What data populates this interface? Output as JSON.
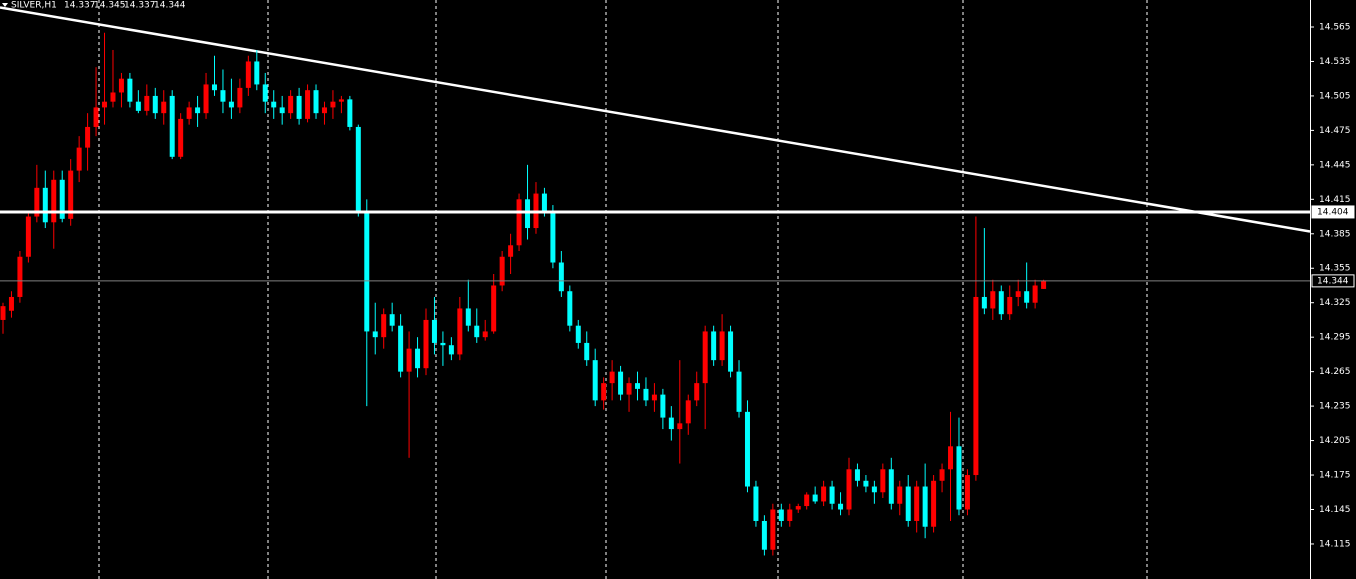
{
  "chart_data": {
    "type": "candlestick",
    "title": "SILVER,H1",
    "header_ohlc": [
      14.337,
      14.345,
      14.337,
      14.344
    ],
    "up_color": "#ff0000",
    "down_color": "#00ffff",
    "ylim": [
      14.0845,
      14.5885
    ],
    "yticks": [
      14.115,
      14.145,
      14.175,
      14.205,
      14.235,
      14.265,
      14.295,
      14.325,
      14.355,
      14.385,
      14.415,
      14.445,
      14.475,
      14.505,
      14.535,
      14.565
    ],
    "hlines": [
      {
        "value": 14.404,
        "color": "#ffffff"
      },
      {
        "value": 14.344,
        "color": "#808080"
      }
    ],
    "trendline": {
      "values": [
        14.582,
        14.387
      ],
      "color": "#ffffff"
    },
    "ohlc": [
      [
        14.31,
        14.325,
        14.298,
        14.322
      ],
      [
        14.318,
        14.335,
        14.312,
        14.33
      ],
      [
        14.33,
        14.37,
        14.325,
        14.365
      ],
      [
        14.365,
        14.405,
        14.36,
        14.4
      ],
      [
        14.4,
        14.445,
        14.395,
        14.425
      ],
      [
        14.425,
        14.44,
        14.39,
        14.395
      ],
      [
        14.395,
        14.44,
        14.372,
        14.432
      ],
      [
        14.432,
        14.44,
        14.395,
        14.398
      ],
      [
        14.398,
        14.45,
        14.392,
        14.44
      ],
      [
        14.44,
        14.47,
        14.43,
        14.46
      ],
      [
        14.46,
        14.49,
        14.44,
        14.478
      ],
      [
        14.478,
        14.53,
        14.47,
        14.495
      ],
      [
        14.495,
        14.56,
        14.48,
        14.5
      ],
      [
        14.5,
        14.545,
        14.495,
        14.508
      ],
      [
        14.508,
        14.525,
        14.495,
        14.52
      ],
      [
        14.52,
        14.525,
        14.495,
        14.5
      ],
      [
        14.5,
        14.51,
        14.49,
        14.492
      ],
      [
        14.492,
        14.515,
        14.488,
        14.505
      ],
      [
        14.505,
        14.512,
        14.485,
        14.49
      ],
      [
        14.49,
        14.51,
        14.48,
        14.5
      ],
      [
        14.505,
        14.51,
        14.45,
        14.452
      ],
      [
        14.452,
        14.49,
        14.45,
        14.485
      ],
      [
        14.485,
        14.5,
        14.48,
        14.495
      ],
      [
        14.495,
        14.505,
        14.478,
        14.49
      ],
      [
        14.49,
        14.525,
        14.485,
        14.515
      ],
      [
        14.515,
        14.54,
        14.505,
        14.51
      ],
      [
        14.51,
        14.528,
        14.49,
        14.5
      ],
      [
        14.5,
        14.52,
        14.485,
        14.495
      ],
      [
        14.495,
        14.52,
        14.49,
        14.512
      ],
      [
        14.512,
        14.54,
        14.505,
        14.535
      ],
      [
        14.535,
        14.545,
        14.51,
        14.515
      ],
      [
        14.515,
        14.525,
        14.49,
        14.5
      ],
      [
        14.5,
        14.51,
        14.485,
        14.495
      ],
      [
        14.495,
        14.505,
        14.48,
        14.49
      ],
      [
        14.49,
        14.51,
        14.485,
        14.505
      ],
      [
        14.505,
        14.512,
        14.48,
        14.485
      ],
      [
        14.485,
        14.515,
        14.482,
        14.51
      ],
      [
        14.51,
        14.515,
        14.485,
        14.49
      ],
      [
        14.49,
        14.5,
        14.48,
        14.495
      ],
      [
        14.495,
        14.51,
        14.485,
        14.5
      ],
      [
        14.5,
        14.505,
        14.49,
        14.502
      ],
      [
        14.502,
        14.505,
        14.475,
        14.478
      ],
      [
        14.478,
        14.48,
        14.4,
        14.405
      ],
      [
        14.405,
        14.415,
        14.235,
        14.3
      ],
      [
        14.3,
        14.325,
        14.28,
        14.295
      ],
      [
        14.295,
        14.32,
        14.285,
        14.315
      ],
      [
        14.315,
        14.325,
        14.3,
        14.305
      ],
      [
        14.305,
        14.315,
        14.26,
        14.265
      ],
      [
        14.265,
        14.3,
        14.19,
        14.285
      ],
      [
        14.285,
        14.295,
        14.26,
        14.268
      ],
      [
        14.268,
        14.32,
        14.262,
        14.31
      ],
      [
        14.31,
        14.33,
        14.28,
        14.29
      ],
      [
        14.29,
        14.3,
        14.27,
        14.288
      ],
      [
        14.288,
        14.295,
        14.275,
        14.28
      ],
      [
        14.28,
        14.33,
        14.275,
        14.32
      ],
      [
        14.32,
        14.345,
        14.3,
        14.305
      ],
      [
        14.305,
        14.32,
        14.29,
        14.295
      ],
      [
        14.295,
        14.31,
        14.292,
        14.3
      ],
      [
        14.3,
        14.35,
        14.298,
        14.34
      ],
      [
        14.34,
        14.37,
        14.335,
        14.365
      ],
      [
        14.365,
        14.385,
        14.35,
        14.375
      ],
      [
        14.375,
        14.42,
        14.37,
        14.415
      ],
      [
        14.415,
        14.445,
        14.38,
        14.39
      ],
      [
        14.39,
        14.43,
        14.385,
        14.42
      ],
      [
        14.42,
        14.425,
        14.4,
        14.405
      ],
      [
        14.405,
        14.41,
        14.355,
        14.36
      ],
      [
        14.36,
        14.37,
        14.33,
        14.335
      ],
      [
        14.335,
        14.34,
        14.3,
        14.305
      ],
      [
        14.305,
        14.31,
        14.285,
        14.29
      ],
      [
        14.29,
        14.3,
        14.27,
        14.275
      ],
      [
        14.275,
        14.285,
        14.235,
        14.24
      ],
      [
        14.24,
        14.26,
        14.232,
        14.255
      ],
      [
        14.255,
        14.275,
        14.24,
        14.265
      ],
      [
        14.265,
        14.27,
        14.24,
        14.245
      ],
      [
        14.245,
        14.26,
        14.23,
        14.255
      ],
      [
        14.255,
        14.265,
        14.24,
        14.25
      ],
      [
        14.25,
        14.26,
        14.235,
        14.24
      ],
      [
        14.24,
        14.255,
        14.23,
        14.245
      ],
      [
        14.245,
        14.25,
        14.215,
        14.225
      ],
      [
        14.225,
        14.235,
        14.205,
        14.215
      ],
      [
        14.215,
        14.275,
        14.185,
        14.22
      ],
      [
        14.22,
        14.245,
        14.21,
        14.24
      ],
      [
        14.24,
        14.265,
        14.235,
        14.255
      ],
      [
        14.255,
        14.305,
        14.215,
        14.3
      ],
      [
        14.3,
        14.305,
        14.27,
        14.275
      ],
      [
        14.275,
        14.315,
        14.27,
        14.3
      ],
      [
        14.3,
        14.305,
        14.26,
        14.265
      ],
      [
        14.265,
        14.275,
        14.225,
        14.23
      ],
      [
        14.23,
        14.24,
        14.16,
        14.165
      ],
      [
        14.165,
        14.17,
        14.13,
        14.135
      ],
      [
        14.135,
        14.14,
        14.105,
        14.11
      ],
      [
        14.11,
        14.15,
        14.105,
        14.145
      ],
      [
        14.145,
        14.15,
        14.13,
        14.135
      ],
      [
        14.135,
        14.15,
        14.13,
        14.145
      ],
      [
        14.145,
        14.15,
        14.142,
        14.148
      ],
      [
        14.148,
        14.16,
        14.145,
        14.158
      ],
      [
        14.158,
        14.165,
        14.15,
        14.152
      ],
      [
        14.152,
        14.17,
        14.148,
        14.165
      ],
      [
        14.165,
        14.17,
        14.145,
        14.15
      ],
      [
        14.15,
        14.16,
        14.14,
        14.145
      ],
      [
        14.145,
        14.19,
        14.14,
        14.18
      ],
      [
        14.18,
        14.185,
        14.165,
        14.17
      ],
      [
        14.17,
        14.175,
        14.16,
        14.165
      ],
      [
        14.165,
        14.17,
        14.15,
        14.16
      ],
      [
        14.16,
        14.185,
        14.155,
        14.18
      ],
      [
        14.18,
        14.19,
        14.145,
        14.15
      ],
      [
        14.15,
        14.17,
        14.14,
        14.165
      ],
      [
        14.165,
        14.175,
        14.13,
        14.135
      ],
      [
        14.135,
        14.17,
        14.125,
        14.165
      ],
      [
        14.165,
        14.185,
        14.12,
        14.13
      ],
      [
        14.13,
        14.175,
        14.125,
        14.17
      ],
      [
        14.17,
        14.185,
        14.16,
        14.18
      ],
      [
        14.18,
        14.23,
        14.135,
        14.2
      ],
      [
        14.2,
        14.225,
        14.14,
        14.145
      ],
      [
        14.145,
        14.18,
        14.14,
        14.175
      ],
      [
        14.175,
        14.4,
        14.17,
        14.33
      ],
      [
        14.33,
        14.39,
        14.315,
        14.32
      ],
      [
        14.32,
        14.345,
        14.31,
        14.335
      ],
      [
        14.335,
        14.34,
        14.31,
        14.315
      ],
      [
        14.315,
        14.34,
        14.31,
        14.33
      ],
      [
        14.33,
        14.345,
        14.322,
        14.335
      ],
      [
        14.335,
        14.36,
        14.32,
        14.325
      ],
      [
        14.325,
        14.345,
        14.32,
        14.34
      ],
      [
        14.337,
        14.345,
        14.337,
        14.344
      ]
    ]
  }
}
